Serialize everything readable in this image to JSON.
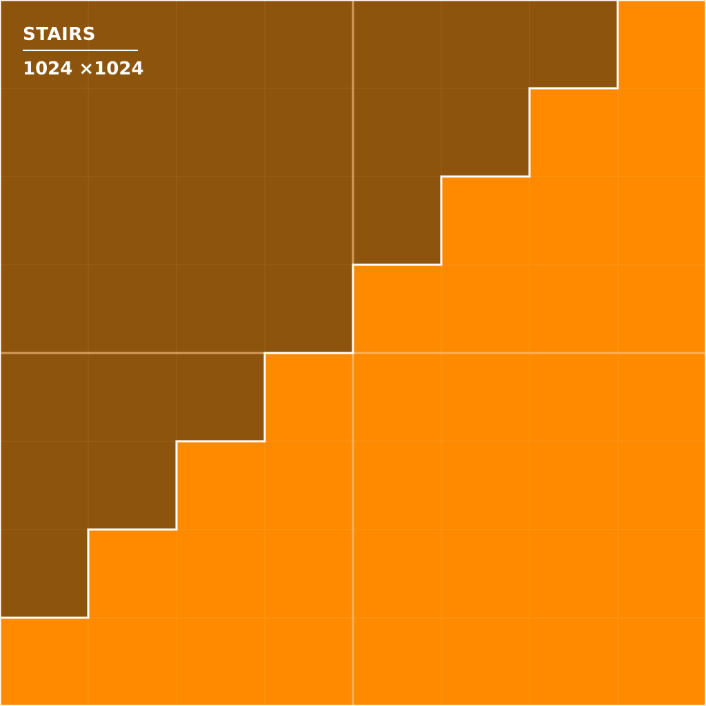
{
  "title": "STAIRS",
  "size_label": "1024 ×1024",
  "grid": {
    "rows": 8,
    "cols": 8
  },
  "colors": {
    "upper": "#8d540d",
    "lower": "#ff8a00",
    "stair_line": "#ffffff",
    "grid_line": "#a0662a",
    "center_line": "#ffc98a"
  }
}
